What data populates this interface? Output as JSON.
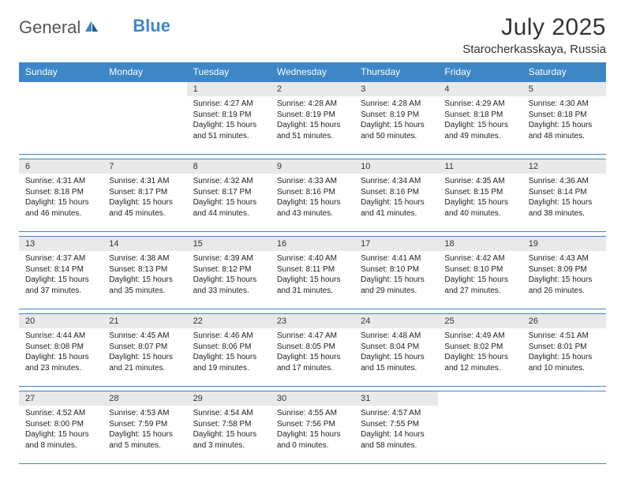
{
  "logo": {
    "part1": "General",
    "part2": "Blue"
  },
  "title": "July 2025",
  "location": "Starocherkasskaya, Russia",
  "colors": {
    "header_bg": "#3d87c7",
    "header_text": "#ffffff",
    "daynum_bg": "#e9e9e9",
    "border": "#3d87c7",
    "logo_gray": "#555555",
    "logo_blue": "#3d87c7"
  },
  "typography": {
    "title_fontsize": 30,
    "location_fontsize": 15,
    "weekday_fontsize": 12,
    "daynum_fontsize": 11,
    "body_fontsize": 10
  },
  "weekdays": [
    "Sunday",
    "Monday",
    "Tuesday",
    "Wednesday",
    "Thursday",
    "Friday",
    "Saturday"
  ],
  "weeks": [
    [
      {
        "n": "",
        "sunrise": "",
        "sunset": "",
        "daylight": ""
      },
      {
        "n": "",
        "sunrise": "",
        "sunset": "",
        "daylight": ""
      },
      {
        "n": "1",
        "sunrise": "Sunrise: 4:27 AM",
        "sunset": "Sunset: 8:19 PM",
        "daylight": "Daylight: 15 hours and 51 minutes."
      },
      {
        "n": "2",
        "sunrise": "Sunrise: 4:28 AM",
        "sunset": "Sunset: 8:19 PM",
        "daylight": "Daylight: 15 hours and 51 minutes."
      },
      {
        "n": "3",
        "sunrise": "Sunrise: 4:28 AM",
        "sunset": "Sunset: 8:19 PM",
        "daylight": "Daylight: 15 hours and 50 minutes."
      },
      {
        "n": "4",
        "sunrise": "Sunrise: 4:29 AM",
        "sunset": "Sunset: 8:18 PM",
        "daylight": "Daylight: 15 hours and 49 minutes."
      },
      {
        "n": "5",
        "sunrise": "Sunrise: 4:30 AM",
        "sunset": "Sunset: 8:18 PM",
        "daylight": "Daylight: 15 hours and 48 minutes."
      }
    ],
    [
      {
        "n": "6",
        "sunrise": "Sunrise: 4:31 AM",
        "sunset": "Sunset: 8:18 PM",
        "daylight": "Daylight: 15 hours and 46 minutes."
      },
      {
        "n": "7",
        "sunrise": "Sunrise: 4:31 AM",
        "sunset": "Sunset: 8:17 PM",
        "daylight": "Daylight: 15 hours and 45 minutes."
      },
      {
        "n": "8",
        "sunrise": "Sunrise: 4:32 AM",
        "sunset": "Sunset: 8:17 PM",
        "daylight": "Daylight: 15 hours and 44 minutes."
      },
      {
        "n": "9",
        "sunrise": "Sunrise: 4:33 AM",
        "sunset": "Sunset: 8:16 PM",
        "daylight": "Daylight: 15 hours and 43 minutes."
      },
      {
        "n": "10",
        "sunrise": "Sunrise: 4:34 AM",
        "sunset": "Sunset: 8:16 PM",
        "daylight": "Daylight: 15 hours and 41 minutes."
      },
      {
        "n": "11",
        "sunrise": "Sunrise: 4:35 AM",
        "sunset": "Sunset: 8:15 PM",
        "daylight": "Daylight: 15 hours and 40 minutes."
      },
      {
        "n": "12",
        "sunrise": "Sunrise: 4:36 AM",
        "sunset": "Sunset: 8:14 PM",
        "daylight": "Daylight: 15 hours and 38 minutes."
      }
    ],
    [
      {
        "n": "13",
        "sunrise": "Sunrise: 4:37 AM",
        "sunset": "Sunset: 8:14 PM",
        "daylight": "Daylight: 15 hours and 37 minutes."
      },
      {
        "n": "14",
        "sunrise": "Sunrise: 4:38 AM",
        "sunset": "Sunset: 8:13 PM",
        "daylight": "Daylight: 15 hours and 35 minutes."
      },
      {
        "n": "15",
        "sunrise": "Sunrise: 4:39 AM",
        "sunset": "Sunset: 8:12 PM",
        "daylight": "Daylight: 15 hours and 33 minutes."
      },
      {
        "n": "16",
        "sunrise": "Sunrise: 4:40 AM",
        "sunset": "Sunset: 8:11 PM",
        "daylight": "Daylight: 15 hours and 31 minutes."
      },
      {
        "n": "17",
        "sunrise": "Sunrise: 4:41 AM",
        "sunset": "Sunset: 8:10 PM",
        "daylight": "Daylight: 15 hours and 29 minutes."
      },
      {
        "n": "18",
        "sunrise": "Sunrise: 4:42 AM",
        "sunset": "Sunset: 8:10 PM",
        "daylight": "Daylight: 15 hours and 27 minutes."
      },
      {
        "n": "19",
        "sunrise": "Sunrise: 4:43 AM",
        "sunset": "Sunset: 8:09 PM",
        "daylight": "Daylight: 15 hours and 26 minutes."
      }
    ],
    [
      {
        "n": "20",
        "sunrise": "Sunrise: 4:44 AM",
        "sunset": "Sunset: 8:08 PM",
        "daylight": "Daylight: 15 hours and 23 minutes."
      },
      {
        "n": "21",
        "sunrise": "Sunrise: 4:45 AM",
        "sunset": "Sunset: 8:07 PM",
        "daylight": "Daylight: 15 hours and 21 minutes."
      },
      {
        "n": "22",
        "sunrise": "Sunrise: 4:46 AM",
        "sunset": "Sunset: 8:06 PM",
        "daylight": "Daylight: 15 hours and 19 minutes."
      },
      {
        "n": "23",
        "sunrise": "Sunrise: 4:47 AM",
        "sunset": "Sunset: 8:05 PM",
        "daylight": "Daylight: 15 hours and 17 minutes."
      },
      {
        "n": "24",
        "sunrise": "Sunrise: 4:48 AM",
        "sunset": "Sunset: 8:04 PM",
        "daylight": "Daylight: 15 hours and 15 minutes."
      },
      {
        "n": "25",
        "sunrise": "Sunrise: 4:49 AM",
        "sunset": "Sunset: 8:02 PM",
        "daylight": "Daylight: 15 hours and 12 minutes."
      },
      {
        "n": "26",
        "sunrise": "Sunrise: 4:51 AM",
        "sunset": "Sunset: 8:01 PM",
        "daylight": "Daylight: 15 hours and 10 minutes."
      }
    ],
    [
      {
        "n": "27",
        "sunrise": "Sunrise: 4:52 AM",
        "sunset": "Sunset: 8:00 PM",
        "daylight": "Daylight: 15 hours and 8 minutes."
      },
      {
        "n": "28",
        "sunrise": "Sunrise: 4:53 AM",
        "sunset": "Sunset: 7:59 PM",
        "daylight": "Daylight: 15 hours and 5 minutes."
      },
      {
        "n": "29",
        "sunrise": "Sunrise: 4:54 AM",
        "sunset": "Sunset: 7:58 PM",
        "daylight": "Daylight: 15 hours and 3 minutes."
      },
      {
        "n": "30",
        "sunrise": "Sunrise: 4:55 AM",
        "sunset": "Sunset: 7:56 PM",
        "daylight": "Daylight: 15 hours and 0 minutes."
      },
      {
        "n": "31",
        "sunrise": "Sunrise: 4:57 AM",
        "sunset": "Sunset: 7:55 PM",
        "daylight": "Daylight: 14 hours and 58 minutes."
      },
      {
        "n": "",
        "sunrise": "",
        "sunset": "",
        "daylight": ""
      },
      {
        "n": "",
        "sunrise": "",
        "sunset": "",
        "daylight": ""
      }
    ]
  ]
}
